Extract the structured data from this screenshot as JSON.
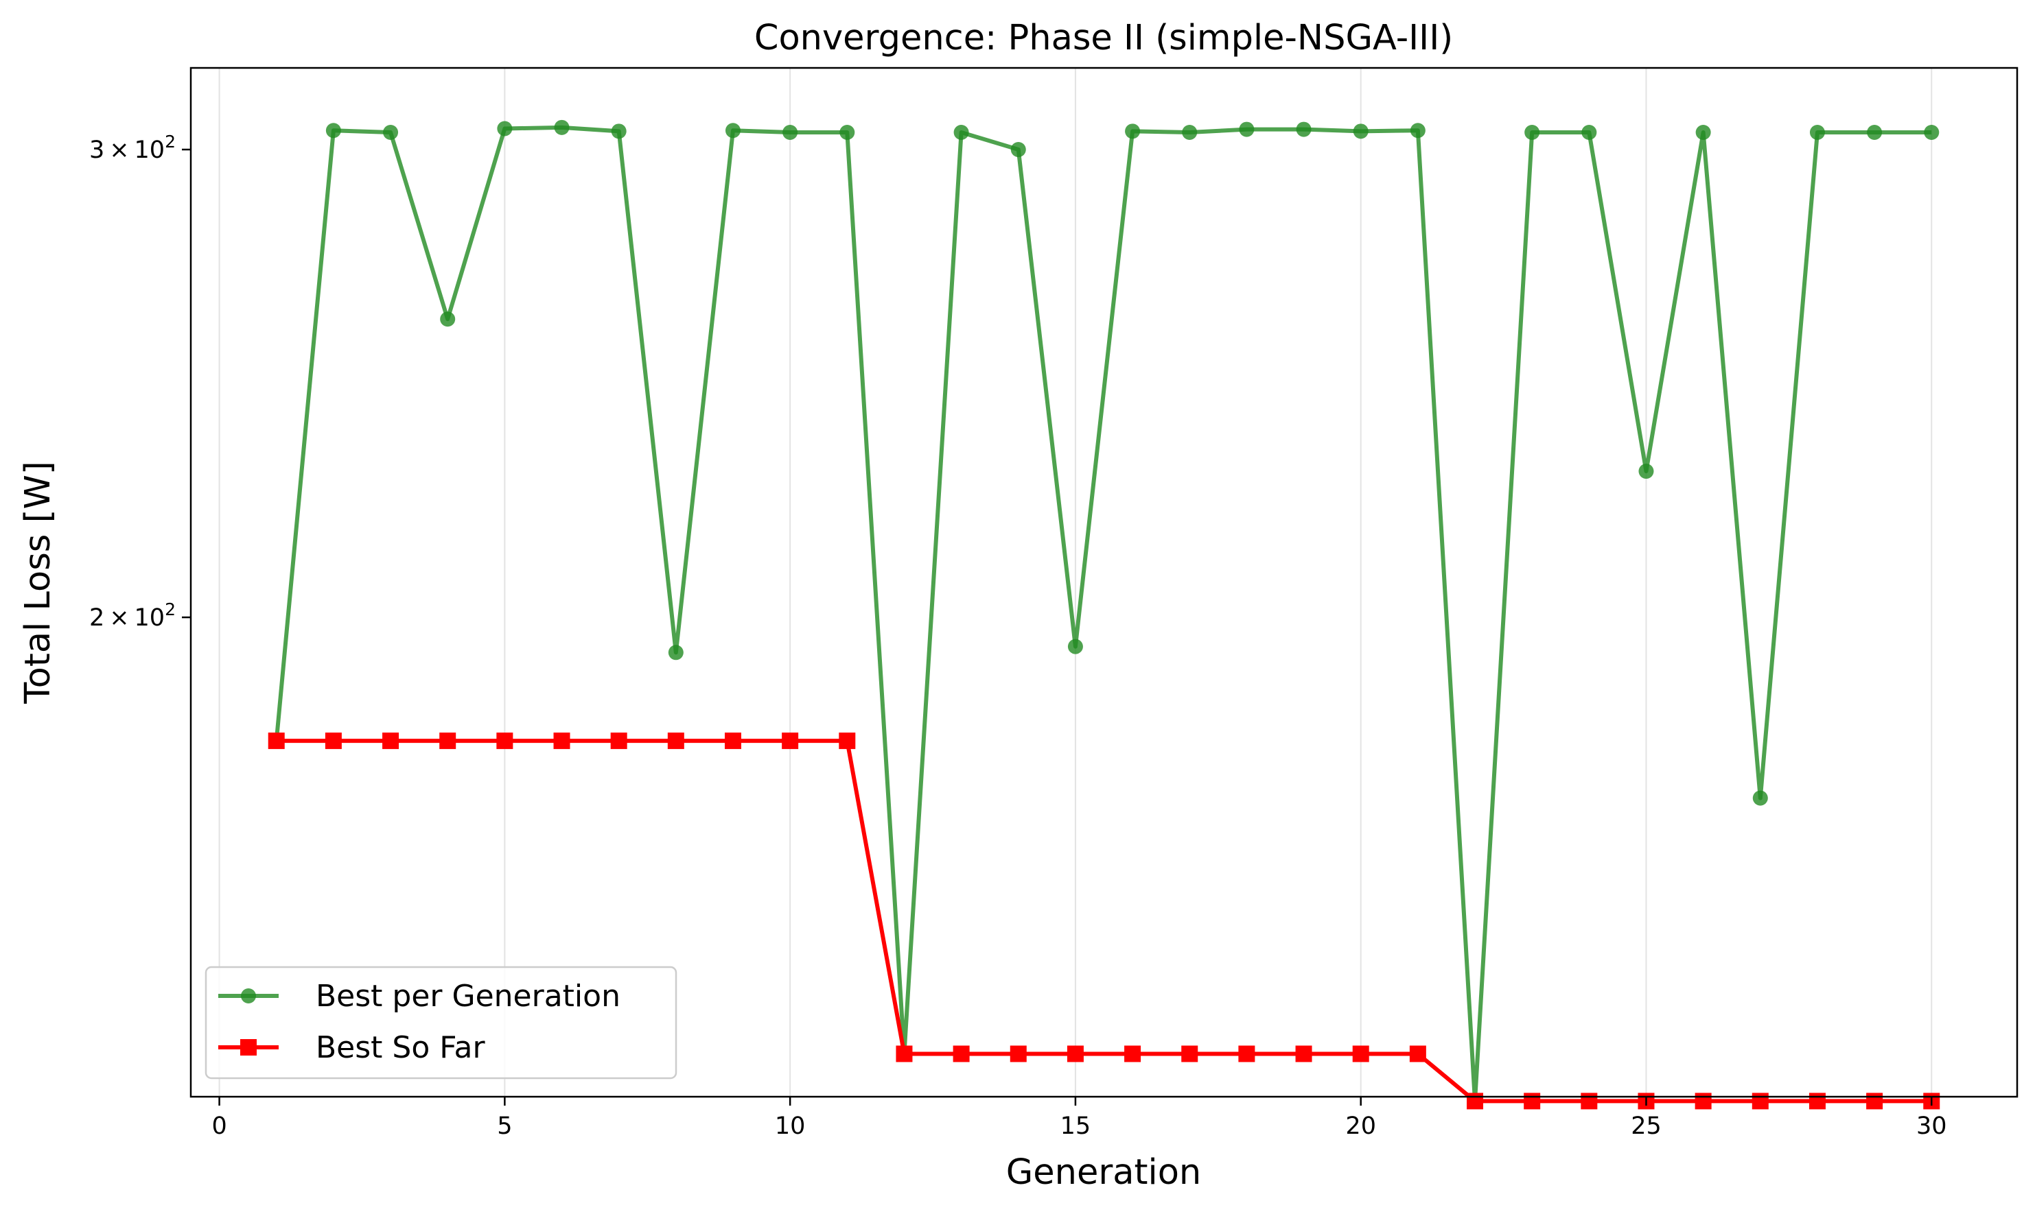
{
  "chart_data": {
    "type": "line",
    "title": "Convergence: Phase II (simple-NSGA-III)",
    "xlabel": "Generation",
    "ylabel": "Total Loss [W]",
    "x_scale": "linear",
    "y_scale": "log",
    "xlim": [
      -0.5,
      31.5
    ],
    "ylim": [
      132,
      322
    ],
    "grid": "vertical gridlines at x ticks",
    "legend_position": "lower-left",
    "x_ticks": [
      0,
      5,
      10,
      15,
      20,
      25,
      30
    ],
    "x_tick_labels": [
      "0",
      "5",
      "10",
      "15",
      "20",
      "25",
      "30"
    ],
    "y_ticks": [
      200,
      300
    ],
    "y_tick_labels": [
      {
        "base": "2",
        "times": "×",
        "ten": "10",
        "exp": "2"
      },
      {
        "base": "3",
        "times": "×",
        "ten": "10",
        "exp": "2"
      }
    ],
    "x": [
      1,
      2,
      3,
      4,
      5,
      6,
      7,
      8,
      9,
      10,
      11,
      12,
      13,
      14,
      15,
      16,
      17,
      18,
      19,
      20,
      21,
      22,
      23,
      24,
      25,
      26,
      27,
      28,
      29,
      30
    ],
    "series": [
      {
        "name": "Best per Generation",
        "color": "#228B22",
        "marker": "circle",
        "values": [
          179.7,
          305,
          304.5,
          259,
          305.5,
          305.8,
          304.8,
          194,
          305,
          304.5,
          304.5,
          137,
          304.5,
          300,
          195,
          304.8,
          304.5,
          305.3,
          305.3,
          304.8,
          305,
          131.5,
          304.5,
          304.5,
          227,
          304.5,
          171,
          304.5,
          304.5,
          304.5
        ]
      },
      {
        "name": "Best So Far",
        "color": "#ff0000",
        "marker": "square",
        "values": [
          179.7,
          179.7,
          179.7,
          179.7,
          179.7,
          179.7,
          179.7,
          179.7,
          179.7,
          179.7,
          179.7,
          137,
          137,
          137,
          137,
          137,
          137,
          137,
          137,
          137,
          137,
          131.5,
          131.5,
          131.5,
          131.5,
          131.5,
          131.5,
          131.5,
          131.5,
          131.5
        ]
      }
    ]
  }
}
